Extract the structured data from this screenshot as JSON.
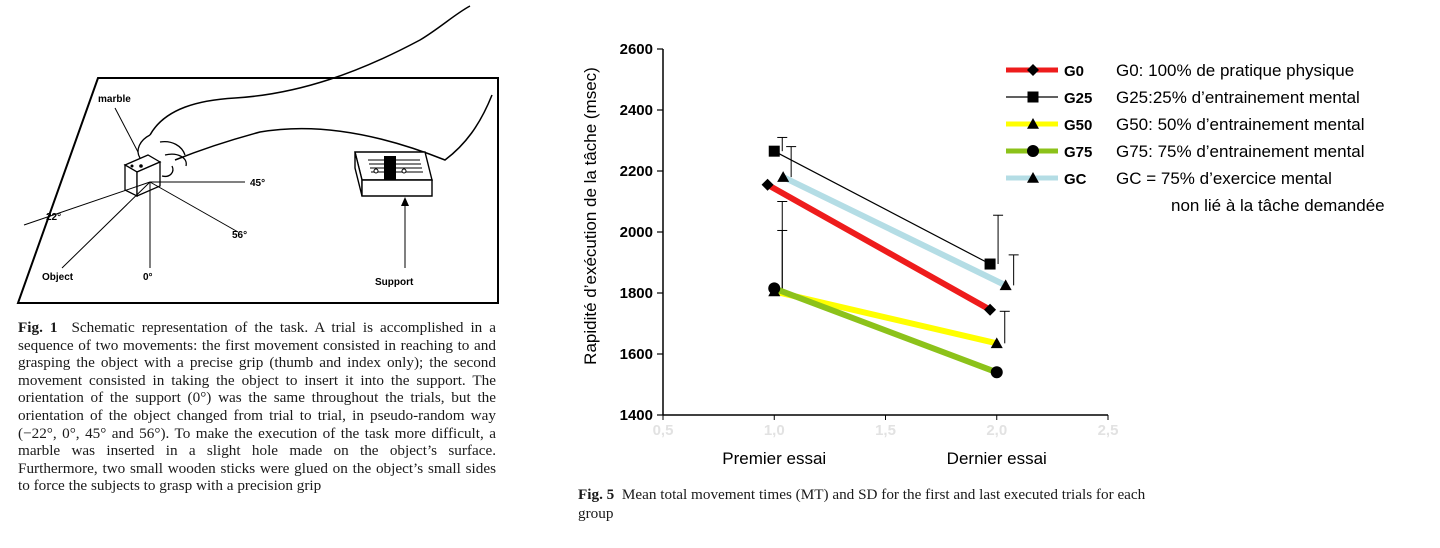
{
  "fig1": {
    "labels": {
      "marble": "marble",
      "deg45": "45°",
      "deg22": "22°",
      "deg56": "56°",
      "object": "Object",
      "deg0": "0°",
      "support": "Support"
    },
    "caption_label": "Fig. 1",
    "caption_text": "Schematic representation of the task. A trial is accomplished in a sequence of two movements: the first movement consisted in reaching to and grasping the object with a precise grip (thumb and index only); the second movement consisted in taking the object to insert it into the support. The orientation of the support (0°) was the same throughout the trials, but the orientation of the object changed from trial to trial, in pseudo-random way (−22°, 0°, 45° and 56°). To make the execution of the task more difficult, a marble was inserted in a slight hole made on the object’s surface. Furthermore, two small wooden sticks were glued on the object’s small sides to force the subjects to grasp with a precision grip"
  },
  "fig5": {
    "caption_label": "Fig. 5",
    "caption_text": "Mean total movement times (MT) and SD for the first and last executed trials for each group"
  },
  "chart_data": {
    "type": "line",
    "ylabel": "Rapidité d’exécution de la tâche (msec)",
    "xlim": [
      0.5,
      2.5
    ],
    "ylim": [
      1400,
      2600
    ],
    "x_ticks": [
      "0,5",
      "1,0",
      "1,5",
      "2,0",
      "2,5"
    ],
    "y_ticks": [
      "1400",
      "1600",
      "1800",
      "2000",
      "2200",
      "2400",
      "2600"
    ],
    "categories": [
      "Premier essai",
      "Dernier essai"
    ],
    "grid": false,
    "legend_position": "top-right",
    "series": [
      {
        "name": "G0",
        "description": "G0: 100% de pratique physique",
        "color": "#ee1c1c",
        "marker": "diamond",
        "x": [
          0.97,
          1.97
        ],
        "values": [
          2155,
          1745
        ],
        "sd": [
          0,
          0
        ]
      },
      {
        "name": "G25",
        "description": "G25:25% d’entrainement mental",
        "color": "#000000",
        "marker": "square",
        "x": [
          1.0,
          1.97
        ],
        "values": [
          2265,
          1895
        ],
        "sd": [
          45,
          160
        ]
      },
      {
        "name": "G50",
        "description": "G50: 50% d’entrainement mental",
        "color": "#ffff00",
        "marker": "triangle",
        "x": [
          1.0,
          2.0
        ],
        "values": [
          1805,
          1635
        ],
        "sd": [
          295,
          105
        ]
      },
      {
        "name": "G75",
        "description": "G75: 75% d’entrainement mental",
        "color": "#8cc21a",
        "marker": "circle",
        "x": [
          1.0,
          2.0
        ],
        "values": [
          1815,
          1540
        ],
        "sd": [
          190,
          0
        ]
      },
      {
        "name": "GC",
        "description": "GC = 75% d’exercice mental",
        "description2": "non lié à la tâche demandée",
        "color": "#b4dde5",
        "marker": "triangle",
        "x": [
          1.04,
          2.04
        ],
        "values": [
          2180,
          1825
        ],
        "sd": [
          100,
          100
        ]
      }
    ]
  }
}
